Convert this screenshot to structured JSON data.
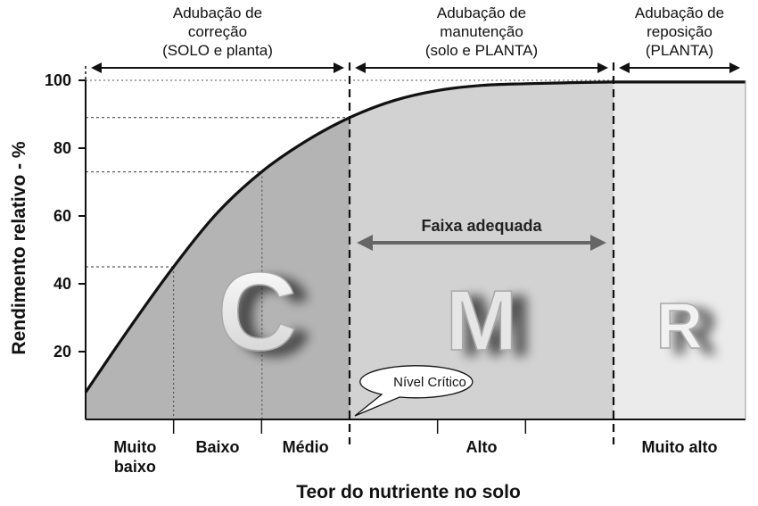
{
  "chart_data": {
    "type": "area",
    "ylabel": "Rendimento relativo - %",
    "xlabel": "Teor do nutriente no solo",
    "ylim": [
      0,
      100
    ],
    "yticks": [
      20,
      40,
      60,
      80,
      100
    ],
    "x_classes": [
      "Muito baixo",
      "Baixo",
      "Médio",
      "Alto",
      "Muito alto"
    ],
    "series": [
      {
        "x": [
          0,
          0.5,
          1,
          1.5,
          2,
          2.5,
          3,
          3.5,
          4,
          4.5,
          5,
          5.5,
          6,
          6.5,
          7.5
        ],
        "y": [
          8,
          27,
          45,
          61,
          73,
          82,
          89,
          94,
          97,
          98.5,
          99,
          99.3,
          99.5,
          99.5,
          99.5
        ]
      }
    ],
    "zones": [
      {
        "letter": "C",
        "header": [
          "Adubação de",
          "correção",
          "(SOLO e planta)"
        ],
        "color": "#b4b4b4",
        "letter_color": "#d0d0d0"
      },
      {
        "letter": "M",
        "header": [
          "Adubação de",
          "manutenção",
          "(solo e PLANTA)"
        ],
        "color": "#d2d2d2",
        "letter_color": "#c2c2c2"
      },
      {
        "letter": "R",
        "header": [
          "Adubação de",
          "reposição",
          "(PLANTA)"
        ],
        "color": "#ebebeb",
        "letter_color": "#d4d4d4"
      }
    ],
    "reference_levels": [
      45,
      73,
      89
    ],
    "band": {
      "label": "Faixa adequada"
    },
    "callout": {
      "label": "Nível Crítico"
    }
  }
}
